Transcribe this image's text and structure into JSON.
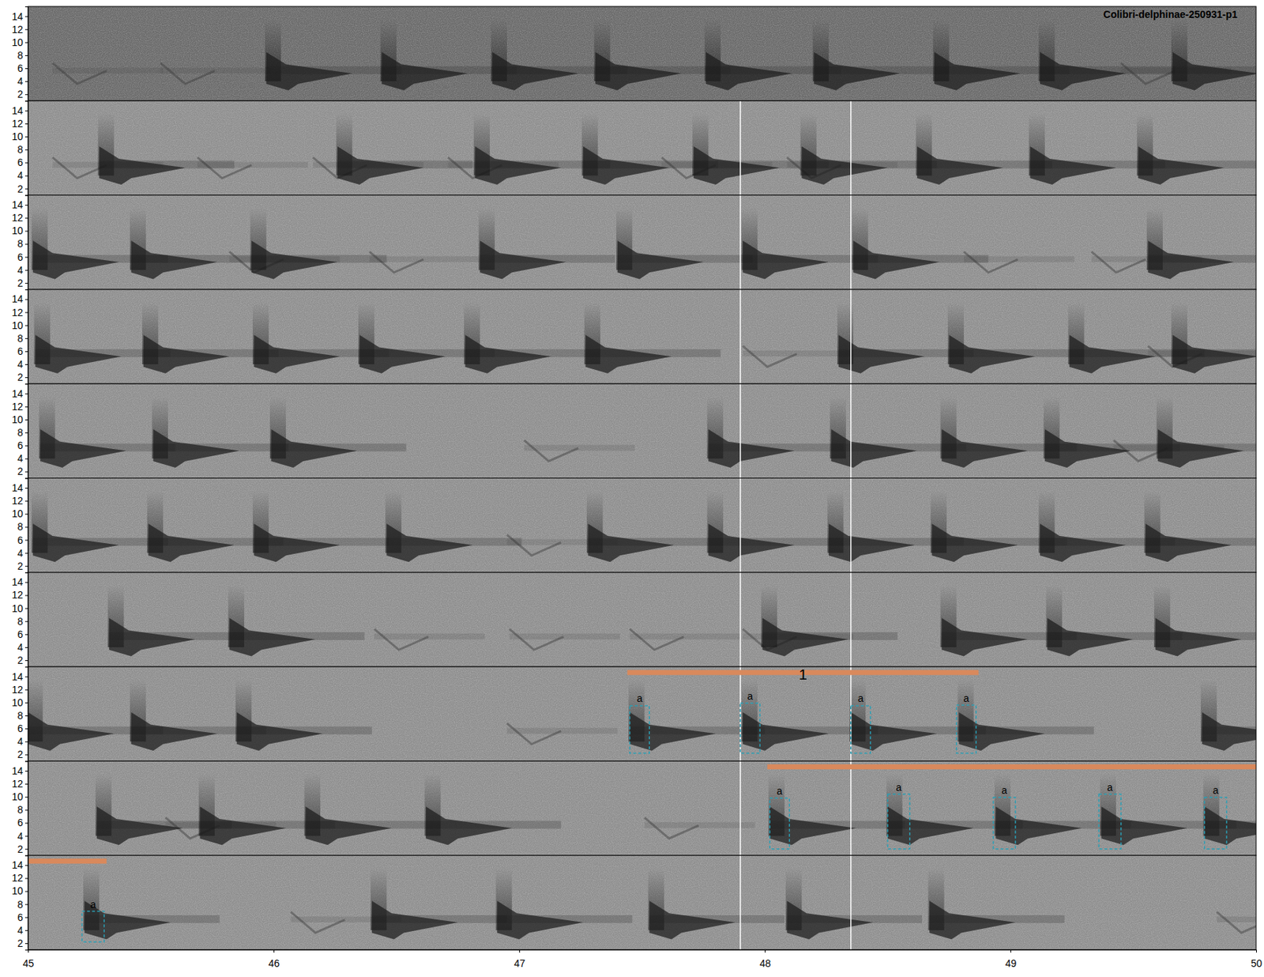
{
  "chart_data": {
    "type": "spectrogram",
    "title": "Colibri-delphinae-250931-p1",
    "xlim": [
      45,
      50
    ],
    "xticks": [
      45,
      46,
      47,
      48,
      49,
      50
    ],
    "ylim": [
      1,
      15.5
    ],
    "yticks": [
      2,
      4,
      6,
      8,
      10,
      12,
      14
    ],
    "rows": [
      {
        "calls": [
          45.97,
          46.44,
          46.89,
          47.31,
          47.76,
          48.2,
          48.69,
          49.12,
          49.66
        ],
        "faint_calls": [
          45.1,
          45.54,
          49.45
        ]
      },
      {
        "calls": [
          45.29,
          46.26,
          46.82,
          47.26,
          47.71,
          48.15,
          48.62,
          49.08,
          49.52
        ],
        "faint_calls": [
          45.1,
          45.69,
          46.16,
          46.71,
          47.58,
          48.09
        ],
        "guides": [
          47.9,
          48.35
        ]
      },
      {
        "calls": [
          45.02,
          45.42,
          45.91,
          46.84,
          47.4,
          47.91,
          48.36,
          49.56
        ],
        "faint_calls": [
          45.82,
          46.39,
          48.81,
          49.33
        ],
        "guides": [
          47.9,
          48.35
        ]
      },
      {
        "calls": [
          45.03,
          45.47,
          45.92,
          46.35,
          46.78,
          47.27,
          48.3,
          48.75,
          49.24,
          49.66
        ],
        "faint_calls": [
          47.91,
          49.56
        ],
        "guides": [
          47.9,
          48.35
        ]
      },
      {
        "calls": [
          45.05,
          45.51,
          45.99,
          47.77,
          48.27,
          48.72,
          49.14,
          49.6
        ],
        "faint_calls": [
          47.02,
          49.42
        ],
        "guides": [
          47.9,
          48.35
        ]
      },
      {
        "calls": [
          45.02,
          45.49,
          45.92,
          46.46,
          47.28,
          47.77,
          48.26,
          48.68,
          49.12,
          49.55
        ],
        "faint_calls": [
          46.95
        ],
        "guides": [
          47.9,
          48.35
        ]
      },
      {
        "calls": [
          45.33,
          45.82,
          47.99,
          48.72,
          49.15,
          49.59
        ],
        "faint_calls": [
          46.41,
          46.96,
          47.45,
          47.91
        ],
        "guides": [
          47.9,
          48.35
        ]
      },
      {
        "calls": [
          45.0,
          45.42,
          45.85,
          47.45,
          47.91,
          48.35,
          48.79,
          49.78
        ],
        "faint_calls": [
          46.95
        ],
        "guides": [
          47.9,
          48.35
        ],
        "boxes": [
          {
            "x": [
              47.45,
              47.53
            ],
            "y": [
              2.2,
              9.5
            ],
            "label": "a"
          },
          {
            "x": [
              47.9,
              47.98
            ],
            "y": [
              2.2,
              9.9
            ],
            "label": "a"
          },
          {
            "x": [
              48.35,
              48.43
            ],
            "y": [
              2.2,
              9.5
            ],
            "label": "a"
          },
          {
            "x": [
              48.78,
              48.86
            ],
            "y": [
              2.2,
              9.6
            ],
            "label": "a"
          }
        ],
        "segments": [
          {
            "x": [
              47.44,
              48.87
            ],
            "label": "1"
          }
        ]
      },
      {
        "calls": [
          45.28,
          45.7,
          46.13,
          46.62,
          48.02,
          48.5,
          48.94,
          49.37,
          49.79
        ],
        "faint_calls": [
          45.56,
          47.51
        ],
        "guides": [
          47.9,
          48.35
        ],
        "boxes": [
          {
            "x": [
              48.02,
              48.1
            ],
            "y": [
              2.0,
              9.8
            ],
            "label": "a"
          },
          {
            "x": [
              48.5,
              48.59
            ],
            "y": [
              2.0,
              10.4
            ],
            "label": "a"
          },
          {
            "x": [
              48.93,
              49.02
            ],
            "y": [
              2.0,
              9.9
            ],
            "label": "a"
          },
          {
            "x": [
              49.36,
              49.45
            ],
            "y": [
              2.0,
              10.4
            ],
            "label": "a"
          },
          {
            "x": [
              49.79,
              49.88
            ],
            "y": [
              2.0,
              9.9
            ],
            "label": "a"
          }
        ],
        "segments": [
          {
            "x": [
              48.01,
              50
            ]
          }
        ]
      },
      {
        "calls": [
          45.23,
          46.4,
          46.91,
          47.53,
          48.09,
          48.67
        ],
        "faint_calls": [
          46.07,
          49.84
        ],
        "guides": [
          47.9,
          48.35
        ],
        "boxes": [
          {
            "x": [
              45.22,
              45.31
            ],
            "y": [
              2.2,
              6.9
            ],
            "label": "a"
          }
        ],
        "segments": [
          {
            "x": [
              45,
              45.32
            ]
          }
        ]
      }
    ]
  }
}
